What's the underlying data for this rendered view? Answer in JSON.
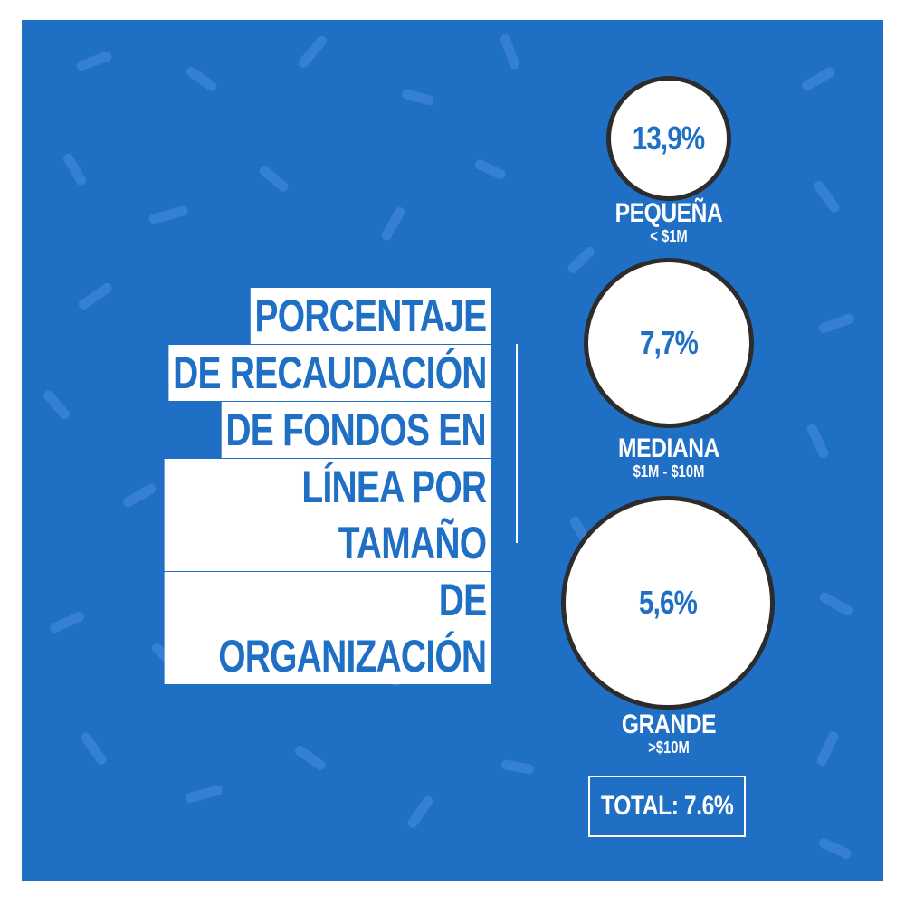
{
  "title": {
    "lines": [
      "PORCENTAJE",
      "DE RECAUDACIÓN",
      "DE FONDOS EN",
      "LÍNEA POR TAMAÑO",
      "DE ORGANIZACIÓN"
    ]
  },
  "segments": [
    {
      "value": "13,9%",
      "name": "PEQUEÑA",
      "range": "< $1M"
    },
    {
      "value": "7,7%",
      "name": "MEDIANA",
      "range": "$1M - $10M"
    },
    {
      "value": "5,6%",
      "name": "GRANDE",
      "range": ">$10M"
    }
  ],
  "total": "TOTAL: 7.6%",
  "colors": {
    "background": "#1f6fc5",
    "text_accent": "#1f6fc5",
    "circle_border": "#2c2c2c"
  }
}
